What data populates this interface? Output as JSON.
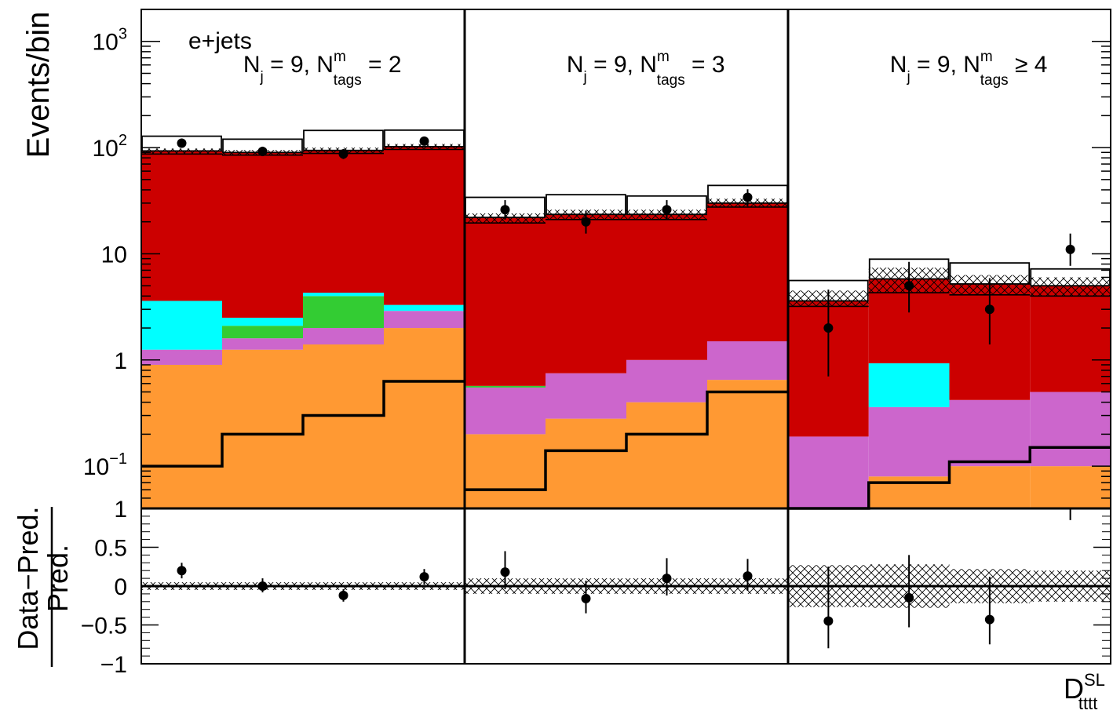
{
  "chart_data": {
    "type": "bar",
    "subtype": "stacked-histogram-with-ratio",
    "channel": "e+jets",
    "x_axis_label": {
      "main": "D",
      "sup": "SL",
      "sub": "tttt"
    },
    "top": {
      "ylabel": "Events/bin",
      "yscale": "log",
      "ylim": [
        0.04,
        2000
      ],
      "yticks": [
        {
          "value": 1000,
          "base": "10",
          "exp": "3"
        },
        {
          "value": 100,
          "base": "10",
          "exp": "2"
        },
        {
          "value": 10,
          "base": "10",
          "exp": ""
        },
        {
          "value": 1,
          "base": "1",
          "exp": ""
        },
        {
          "value": 0.1,
          "base": "10",
          "exp": "−1"
        }
      ]
    },
    "ratio": {
      "ylabel_num": "Data−Pred.",
      "ylabel_den": "Pred.",
      "ylim": [
        -1,
        1
      ],
      "yticks": [
        "1",
        "0.5",
        "0",
        "−0.5",
        "−1"
      ]
    },
    "regions": [
      {
        "label": "N = 9, N = 2",
        "nj": "9",
        "op": "=",
        "ntags": "2",
        "bins": [
          {
            "orange": 0.9,
            "violet": 1.25,
            "green": 1.25,
            "cyan": 3.6,
            "red": 93,
            "total": 128,
            "tttt": 0.1,
            "unc_lo": 87,
            "unc_hi": 98,
            "data": 110,
            "err_lo": 10,
            "err_hi": 11
          },
          {
            "orange": 1.25,
            "violet": 1.6,
            "green": 2.1,
            "cyan": 2.5,
            "red": 90,
            "total": 120,
            "tttt": 0.2,
            "unc_lo": 85,
            "unc_hi": 95,
            "data": 92,
            "err_lo": 9,
            "err_hi": 10
          },
          {
            "orange": 1.4,
            "violet": 2.0,
            "green": 4.0,
            "cyan": 4.3,
            "red": 94,
            "total": 145,
            "tttt": 0.3,
            "unc_lo": 88,
            "unc_hi": 100,
            "data": 87,
            "err_lo": 9,
            "err_hi": 10
          },
          {
            "orange": 2.0,
            "violet": 2.9,
            "green": 2.9,
            "cyan": 3.3,
            "red": 102,
            "total": 146,
            "tttt": 0.63,
            "unc_lo": 96,
            "unc_hi": 108,
            "data": 115,
            "err_lo": 10,
            "err_hi": 11
          }
        ],
        "ratio": [
          {
            "value": 0.2,
            "err_lo": 0.1,
            "err_hi": 0.1,
            "unc": 0.05
          },
          {
            "value": 0.0,
            "err_lo": 0.08,
            "err_hi": 0.1,
            "unc": 0.05
          },
          {
            "value": -0.12,
            "err_lo": 0.08,
            "err_hi": 0.08,
            "unc": 0.05
          },
          {
            "value": 0.12,
            "err_lo": 0.1,
            "err_hi": 0.1,
            "unc": 0.05
          }
        ]
      },
      {
        "label": "N = 9, N = 3",
        "nj": "9",
        "op": "=",
        "ntags": "3",
        "bins": [
          {
            "orange": 0.2,
            "violet": 0.55,
            "green": 0.57,
            "cyan": 0.57,
            "red": 22,
            "total": 34,
            "tttt": 0.06,
            "unc_lo": 19.5,
            "unc_hi": 24,
            "data": 26,
            "err_lo": 5,
            "err_hi": 6
          },
          {
            "orange": 0.28,
            "violet": 0.75,
            "green": 0.75,
            "cyan": 0.75,
            "red": 23.5,
            "total": 36,
            "tttt": 0.14,
            "unc_lo": 21,
            "unc_hi": 26,
            "data": 20,
            "err_lo": 4.5,
            "err_hi": 5.5
          },
          {
            "orange": 0.4,
            "violet": 1.0,
            "green": 1.0,
            "cyan": 1.0,
            "red": 23.5,
            "total": 35,
            "tttt": 0.2,
            "unc_lo": 21,
            "unc_hi": 26,
            "data": 26,
            "err_lo": 5,
            "err_hi": 6
          },
          {
            "orange": 0.65,
            "violet": 1.5,
            "green": 1.5,
            "cyan": 1.5,
            "red": 30,
            "total": 44,
            "tttt": 0.5,
            "unc_lo": 27.5,
            "unc_hi": 33,
            "data": 34,
            "err_lo": 5.5,
            "err_hi": 6.5
          }
        ],
        "ratio": [
          {
            "value": 0.18,
            "err_lo": 0.22,
            "err_hi": 0.27,
            "unc": 0.1
          },
          {
            "value": -0.16,
            "err_lo": 0.19,
            "err_hi": 0.23,
            "unc": 0.1
          },
          {
            "value": 0.1,
            "err_lo": 0.22,
            "err_hi": 0.26,
            "unc": 0.1
          },
          {
            "value": 0.13,
            "err_lo": 0.19,
            "err_hi": 0.22,
            "unc": 0.1
          }
        ]
      },
      {
        "label": "N = 9, N ≥ 4",
        "nj": "9",
        "op": "≥",
        "ntags": "4",
        "bins": [
          {
            "orange": 0.04,
            "violet": 0.19,
            "green": 0.19,
            "cyan": 0.19,
            "red": 3.6,
            "total": 5.6,
            "tttt": 0.035,
            "unc_lo": 3.2,
            "unc_hi": 4.5,
            "data": 2.0,
            "err_lo": 1.3,
            "err_hi": 2.6
          },
          {
            "orange": 0.08,
            "violet": 0.36,
            "green": 0.36,
            "cyan": 0.93,
            "red": 5.8,
            "total": 8.9,
            "tttt": 0.07,
            "unc_lo": 4.3,
            "unc_hi": 7.4,
            "data": 5.0,
            "err_lo": 2.2,
            "err_hi": 3.4
          },
          {
            "orange": 0.1,
            "violet": 0.42,
            "green": 0.42,
            "cyan": 0.42,
            "red": 5.2,
            "total": 8.2,
            "tttt": 0.11,
            "unc_lo": 4.1,
            "unc_hi": 6.3,
            "data": 3.0,
            "err_lo": 1.6,
            "err_hi": 2.9
          },
          {
            "orange": 0.1,
            "violet": 0.5,
            "green": 0.5,
            "cyan": 0.5,
            "red": 5.0,
            "total": 7.2,
            "tttt": 0.15,
            "unc_lo": 4.0,
            "unc_hi": 6.0,
            "data": 11.0,
            "err_lo": 3.3,
            "err_hi": 4.5
          }
        ],
        "ratio": [
          {
            "value": -0.45,
            "err_lo": 0.35,
            "err_hi": 0.7,
            "unc": 0.27
          },
          {
            "value": -0.15,
            "err_lo": 0.38,
            "err_hi": 0.55,
            "unc": 0.28
          },
          {
            "value": -0.43,
            "err_lo": 0.32,
            "err_hi": 0.55,
            "unc": 0.22
          },
          {
            "value": 1.3,
            "err_lo": 0.45,
            "err_hi": 0.6,
            "unc": 0.2
          }
        ]
      }
    ],
    "colors": {
      "orange": "#ff9933",
      "violet": "#cc66cc",
      "green": "#33cc33",
      "cyan": "#00ffff",
      "red": "#cc0000",
      "total_outline": "#000000",
      "tttt_line": "#000000",
      "data": "#000000"
    }
  }
}
